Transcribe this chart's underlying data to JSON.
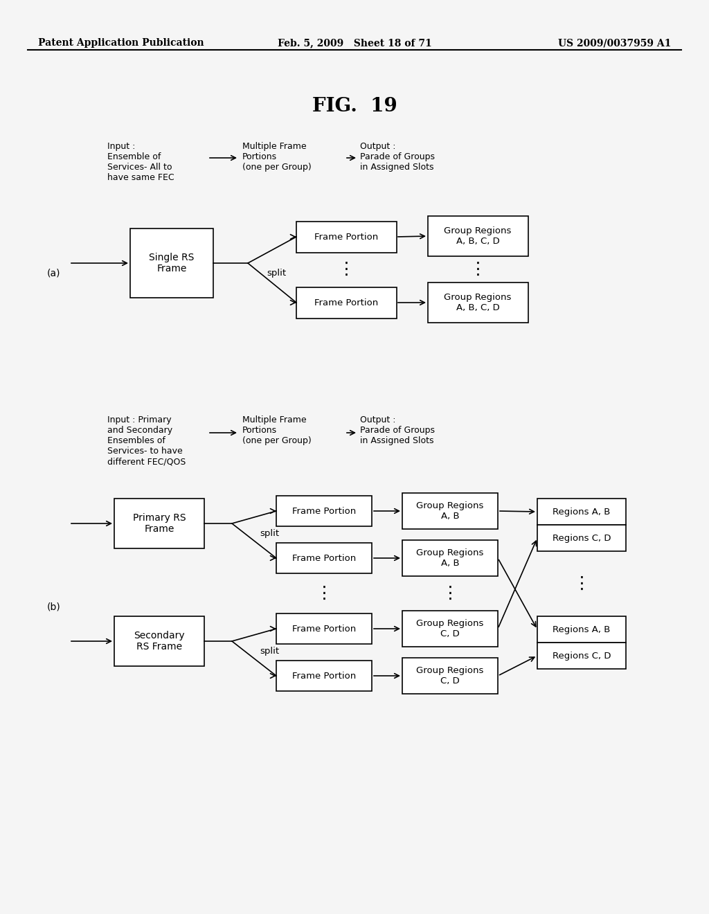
{
  "bg_color": "#f5f5f5",
  "header_left": "Patent Application Publication",
  "header_mid": "Feb. 5, 2009   Sheet 18 of 71",
  "header_right": "US 2009/0037959 A1",
  "fig_title": "FIG.  19",
  "part_a_label": "(a)",
  "part_b_label": "(b)"
}
